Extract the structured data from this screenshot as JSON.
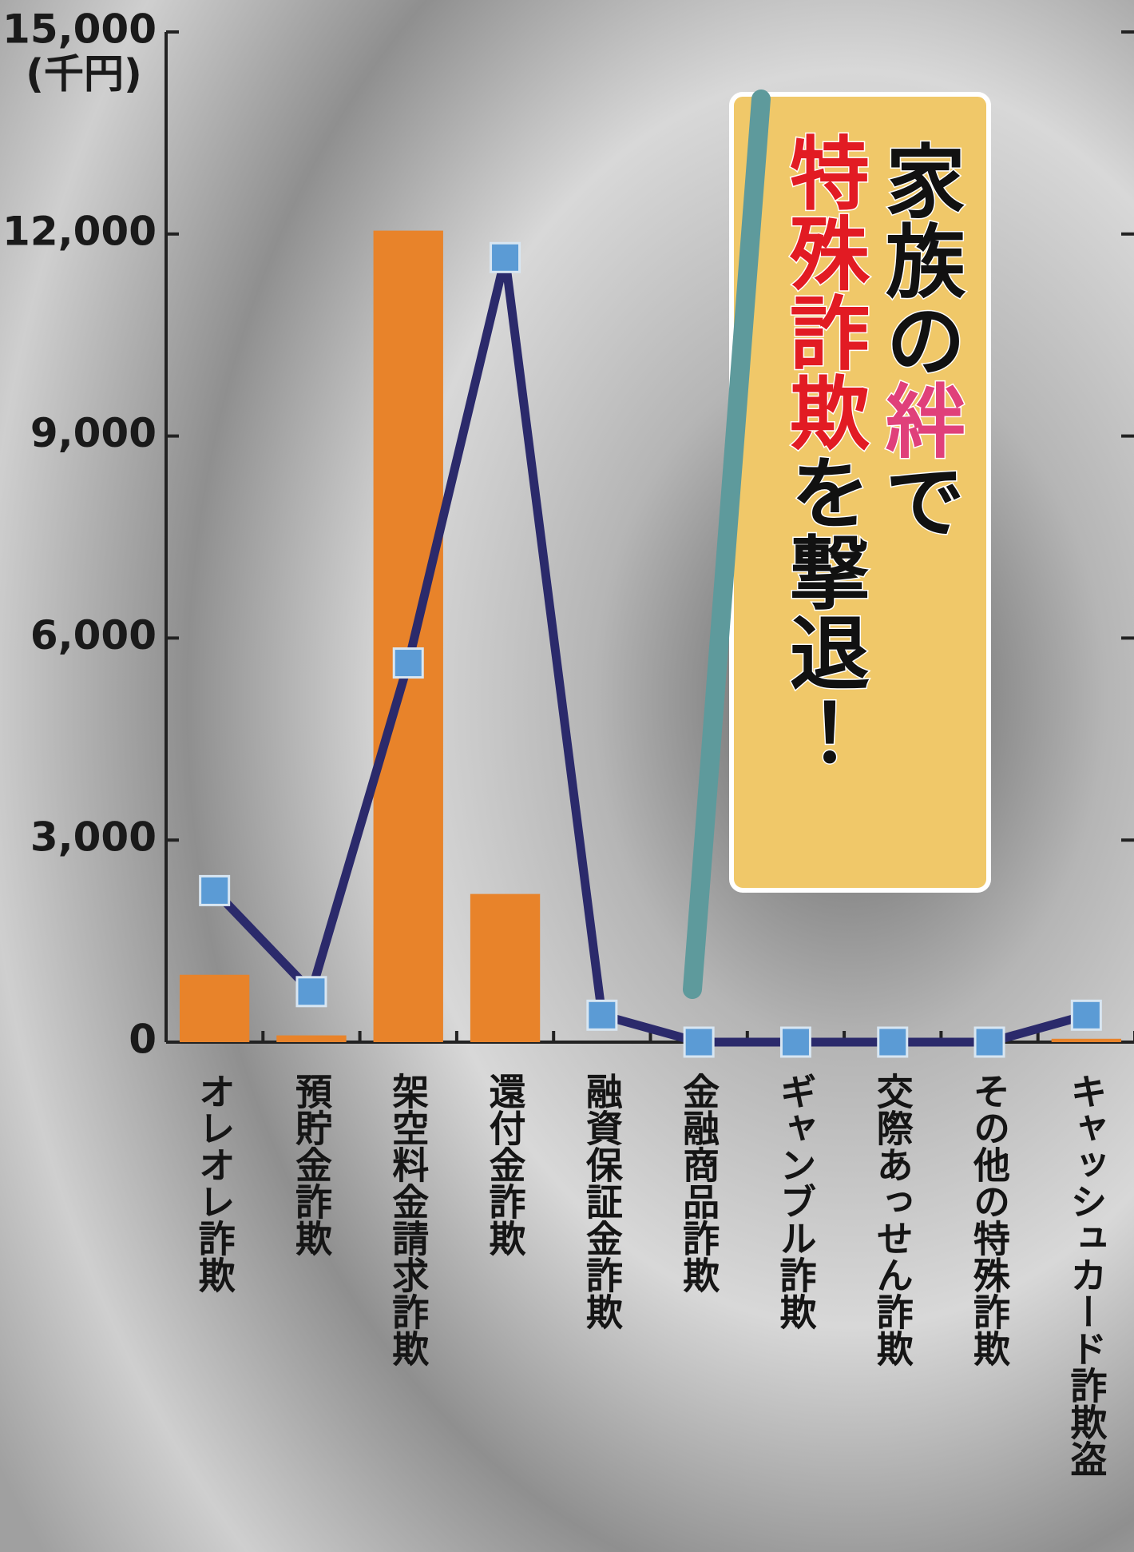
{
  "chart_data": {
    "type": "combo",
    "title_lines": [
      [
        "家族の",
        "絆",
        "で"
      ],
      [
        "特殊詐欺",
        "を撃退！"
      ]
    ],
    "title_colors": [
      [
        "#111111",
        "#e0407a",
        "#111111"
      ],
      [
        "#e21b23",
        "#111111"
      ]
    ],
    "y_unit": "(千円)",
    "categories": [
      "オレオレ詐欺",
      "預貯金詐欺",
      "架空料金請求詐欺",
      "還付金詐欺",
      "融資保証金詐欺",
      "金融商品詐欺",
      "ギャンブル詐欺",
      "交際あっせん詐欺",
      "その他の特殊詐欺",
      "キャッシュカード詐欺盗"
    ],
    "series": [
      {
        "type": "bar",
        "color": "#e8832a",
        "values": [
          1000,
          100,
          12050,
          2200,
          0,
          0,
          0,
          0,
          0,
          50
        ]
      },
      {
        "type": "line",
        "color": "#2b2a6b",
        "marker_color": "#5b9bd5",
        "values": [
          2250,
          750,
          5630,
          11650,
          400,
          0,
          0,
          0,
          0,
          400
        ]
      }
    ],
    "ylim": [
      0,
      15000
    ],
    "yticks": [
      0,
      {
        "value": 3000,
        "label": "3,000"
      },
      {
        "value": 6000,
        "label": "6,000"
      },
      {
        "value": 9000,
        "label": "9,000"
      },
      {
        "value": 12000,
        "label": "12,000"
      },
      {
        "value": 15000,
        "label": "15,000"
      }
    ]
  }
}
